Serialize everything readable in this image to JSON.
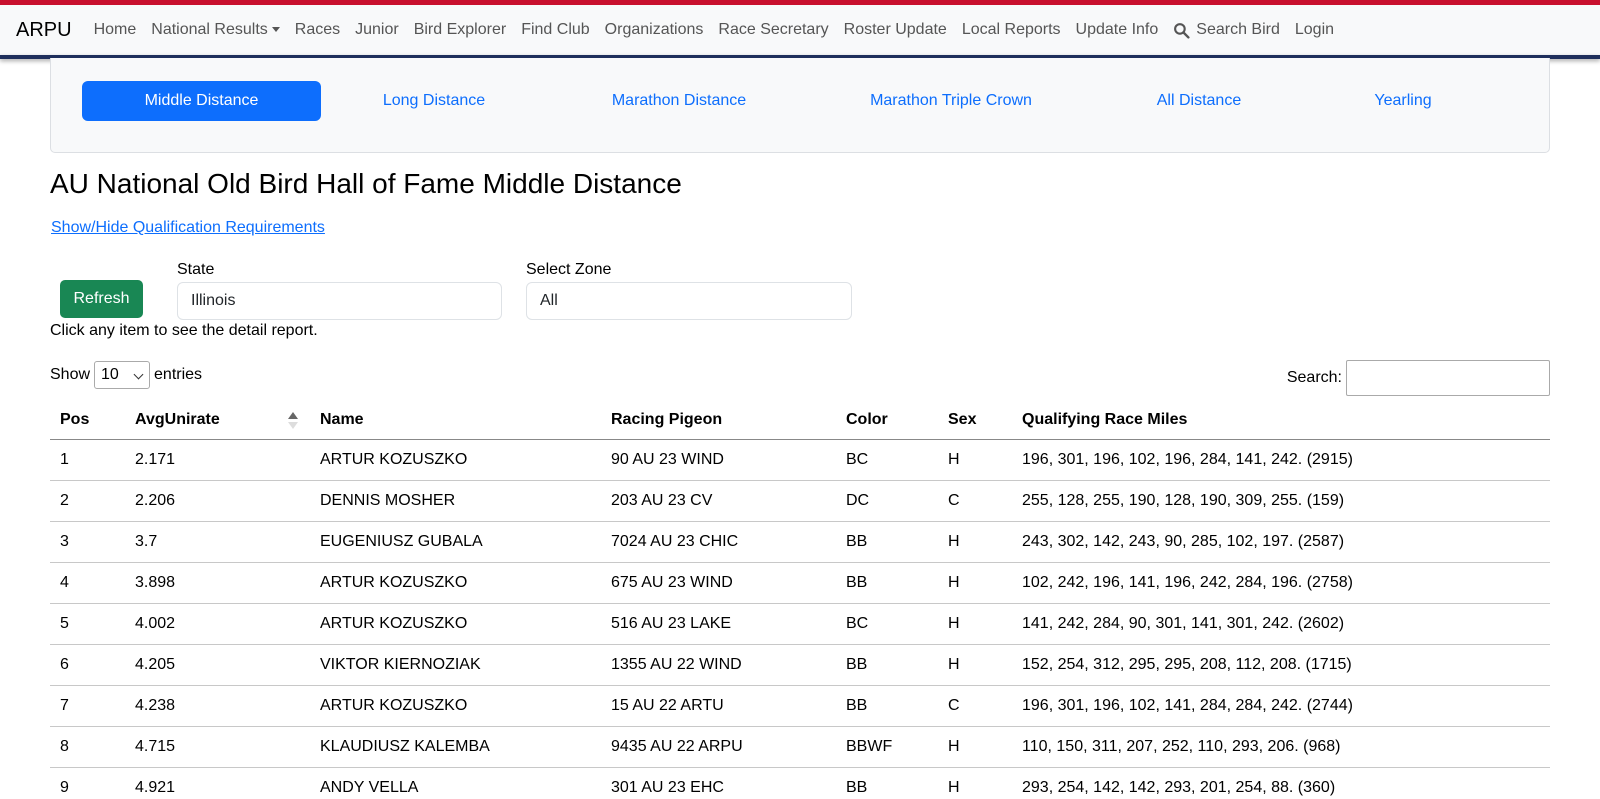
{
  "navbar": {
    "brand": "ARPU",
    "links": [
      "Home",
      "National Results",
      "Races",
      "Junior",
      "Bird Explorer",
      "Find Club",
      "Organizations",
      "Race Secretary",
      "Roster Update",
      "Local Reports",
      "Update Info"
    ],
    "search_label": "Search Bird",
    "login_label": "Login",
    "accent_top": "#c8102e",
    "accent_bottom": "#1f2f5c"
  },
  "tabs": {
    "items": [
      "Middle Distance",
      "Long Distance",
      "Marathon Distance",
      "Marathon Triple Crown",
      "All Distance",
      "Yearling"
    ],
    "active_index": 0,
    "active_color": "#0d6efd"
  },
  "page": {
    "title": "AU National Old Bird Hall of Fame Middle Distance",
    "toggle_link": "Show/Hide Qualification Requirements",
    "refresh_label": "Refresh",
    "state_label": "State",
    "state_value": "Illinois",
    "zone_label": "Select Zone",
    "zone_value": "All",
    "hint": "Click any item to see the detail report."
  },
  "table_controls": {
    "show_label": "Show",
    "entries_value": "10",
    "entries_label": "entries",
    "search_label": "Search:"
  },
  "table": {
    "columns": [
      "Pos",
      "AvgUnirate",
      "Name",
      "Racing Pigeon",
      "Color",
      "Sex",
      "Qualifying Race Miles"
    ],
    "rows": [
      [
        "1",
        "2.171",
        "ARTUR KOZUSZKO",
        "90 AU 23 WIND",
        "BC",
        "H",
        "196, 301, 196, 102, 196, 284, 141, 242. (2915)"
      ],
      [
        "2",
        "2.206",
        "DENNIS MOSHER",
        "203 AU 23 CV",
        "DC",
        "C",
        "255, 128, 255, 190, 128, 190, 309, 255. (159)"
      ],
      [
        "3",
        "3.7",
        "EUGENIUSZ GUBALA",
        "7024 AU 23 CHIC",
        "BB",
        "H",
        "243, 302, 142, 243, 90, 285, 102, 197. (2587)"
      ],
      [
        "4",
        "3.898",
        "ARTUR KOZUSZKO",
        "675 AU 23 WIND",
        "BB",
        "H",
        "102, 242, 196, 141, 196, 242, 284, 196. (2758)"
      ],
      [
        "5",
        "4.002",
        "ARTUR KOZUSZKO",
        "516 AU 23 LAKE",
        "BC",
        "H",
        "141, 242, 284, 90, 301, 141, 301, 242. (2602)"
      ],
      [
        "6",
        "4.205",
        "VIKTOR KIERNOZIAK",
        "1355 AU 22 WIND",
        "BB",
        "H",
        "152, 254, 312, 295, 295, 208, 112, 208. (1715)"
      ],
      [
        "7",
        "4.238",
        "ARTUR KOZUSZKO",
        "15 AU 22 ARTU",
        "BB",
        "C",
        "196, 301, 196, 102, 141, 284, 284, 242. (2744)"
      ],
      [
        "8",
        "4.715",
        "KLAUDIUSZ KALEMBA",
        "9435 AU 22 ARPU",
        "BBWF",
        "H",
        "110, 150, 311, 207, 252, 110, 293, 206. (968)"
      ],
      [
        "9",
        "4.921",
        "ANDY VELLA",
        "301 AU 23 EHC",
        "BB",
        "H",
        "293, 254, 142, 142, 293, 201, 254, 88. (360)"
      ]
    ]
  }
}
